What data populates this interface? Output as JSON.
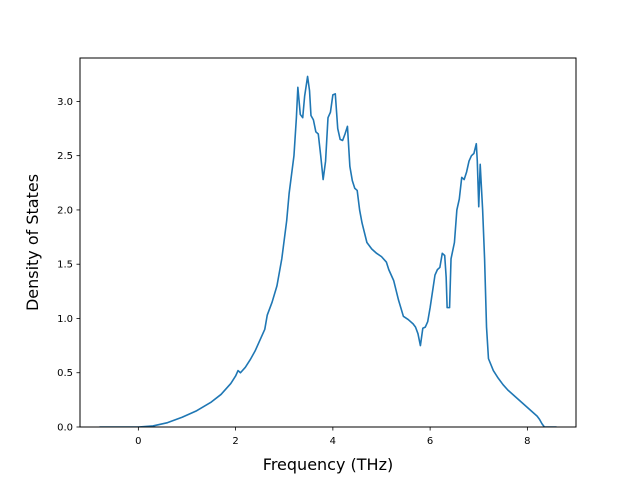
{
  "chart_data": {
    "type": "line",
    "title": "",
    "xlabel": "Frequency (THz)",
    "ylabel": "Density of States",
    "xlim": [
      -1.2,
      9.0
    ],
    "ylim": [
      0.0,
      3.4
    ],
    "xticks": [
      0,
      2,
      4,
      6,
      8
    ],
    "yticks": [
      0.0,
      0.5,
      1.0,
      1.5,
      2.0,
      2.5,
      3.0
    ],
    "xtick_labels": [
      "0",
      "2",
      "4",
      "6",
      "8"
    ],
    "ytick_labels": [
      "0.0",
      "0.5",
      "1.0",
      "1.5",
      "2.0",
      "2.5",
      "3.0"
    ],
    "grid": false,
    "legend": false,
    "series": [
      {
        "color": "#1f77b4",
        "points": [
          [
            -0.8,
            0.0
          ],
          [
            0.0,
            0.0
          ],
          [
            0.3,
            0.01
          ],
          [
            0.6,
            0.04
          ],
          [
            0.9,
            0.09
          ],
          [
            1.2,
            0.15
          ],
          [
            1.5,
            0.23
          ],
          [
            1.7,
            0.3
          ],
          [
            1.9,
            0.4
          ],
          [
            2.0,
            0.47
          ],
          [
            2.05,
            0.52
          ],
          [
            2.1,
            0.5
          ],
          [
            2.2,
            0.55
          ],
          [
            2.3,
            0.62
          ],
          [
            2.4,
            0.7
          ],
          [
            2.5,
            0.8
          ],
          [
            2.6,
            0.9
          ],
          [
            2.65,
            1.03
          ],
          [
            2.75,
            1.15
          ],
          [
            2.85,
            1.3
          ],
          [
            2.95,
            1.55
          ],
          [
            3.05,
            1.9
          ],
          [
            3.1,
            2.15
          ],
          [
            3.2,
            2.5
          ],
          [
            3.25,
            2.85
          ],
          [
            3.28,
            3.13
          ],
          [
            3.33,
            2.88
          ],
          [
            3.38,
            2.85
          ],
          [
            3.42,
            3.05
          ],
          [
            3.48,
            3.23
          ],
          [
            3.52,
            3.1
          ],
          [
            3.55,
            2.87
          ],
          [
            3.6,
            2.83
          ],
          [
            3.65,
            2.72
          ],
          [
            3.7,
            2.7
          ],
          [
            3.75,
            2.5
          ],
          [
            3.8,
            2.28
          ],
          [
            3.85,
            2.45
          ],
          [
            3.9,
            2.85
          ],
          [
            3.95,
            2.9
          ],
          [
            4.0,
            3.06
          ],
          [
            4.05,
            3.07
          ],
          [
            4.1,
            2.75
          ],
          [
            4.15,
            2.65
          ],
          [
            4.2,
            2.64
          ],
          [
            4.25,
            2.7
          ],
          [
            4.3,
            2.77
          ],
          [
            4.35,
            2.4
          ],
          [
            4.4,
            2.27
          ],
          [
            4.45,
            2.2
          ],
          [
            4.5,
            2.18
          ],
          [
            4.55,
            2.0
          ],
          [
            4.6,
            1.88
          ],
          [
            4.7,
            1.7
          ],
          [
            4.8,
            1.64
          ],
          [
            4.9,
            1.6
          ],
          [
            5.0,
            1.57
          ],
          [
            5.1,
            1.52
          ],
          [
            5.15,
            1.45
          ],
          [
            5.25,
            1.35
          ],
          [
            5.35,
            1.17
          ],
          [
            5.45,
            1.02
          ],
          [
            5.55,
            0.99
          ],
          [
            5.65,
            0.95
          ],
          [
            5.7,
            0.92
          ],
          [
            5.75,
            0.86
          ],
          [
            5.8,
            0.75
          ],
          [
            5.85,
            0.91
          ],
          [
            5.9,
            0.92
          ],
          [
            5.95,
            0.97
          ],
          [
            6.0,
            1.1
          ],
          [
            6.05,
            1.25
          ],
          [
            6.1,
            1.4
          ],
          [
            6.15,
            1.45
          ],
          [
            6.2,
            1.47
          ],
          [
            6.25,
            1.6
          ],
          [
            6.3,
            1.58
          ],
          [
            6.33,
            1.38
          ],
          [
            6.35,
            1.1
          ],
          [
            6.4,
            1.1
          ],
          [
            6.43,
            1.55
          ],
          [
            6.5,
            1.7
          ],
          [
            6.55,
            2.0
          ],
          [
            6.6,
            2.1
          ],
          [
            6.65,
            2.3
          ],
          [
            6.7,
            2.28
          ],
          [
            6.75,
            2.35
          ],
          [
            6.8,
            2.45
          ],
          [
            6.85,
            2.5
          ],
          [
            6.9,
            2.52
          ],
          [
            6.95,
            2.61
          ],
          [
            6.97,
            2.45
          ],
          [
            7.0,
            2.03
          ],
          [
            7.03,
            2.42
          ],
          [
            7.08,
            2.0
          ],
          [
            7.12,
            1.55
          ],
          [
            7.16,
            0.92
          ],
          [
            7.2,
            0.63
          ],
          [
            7.3,
            0.52
          ],
          [
            7.4,
            0.45
          ],
          [
            7.5,
            0.39
          ],
          [
            7.6,
            0.34
          ],
          [
            7.75,
            0.28
          ],
          [
            7.9,
            0.22
          ],
          [
            8.05,
            0.16
          ],
          [
            8.2,
            0.1
          ],
          [
            8.25,
            0.07
          ],
          [
            8.3,
            0.03
          ],
          [
            8.35,
            0.0
          ],
          [
            8.6,
            0.0
          ]
        ]
      }
    ]
  }
}
